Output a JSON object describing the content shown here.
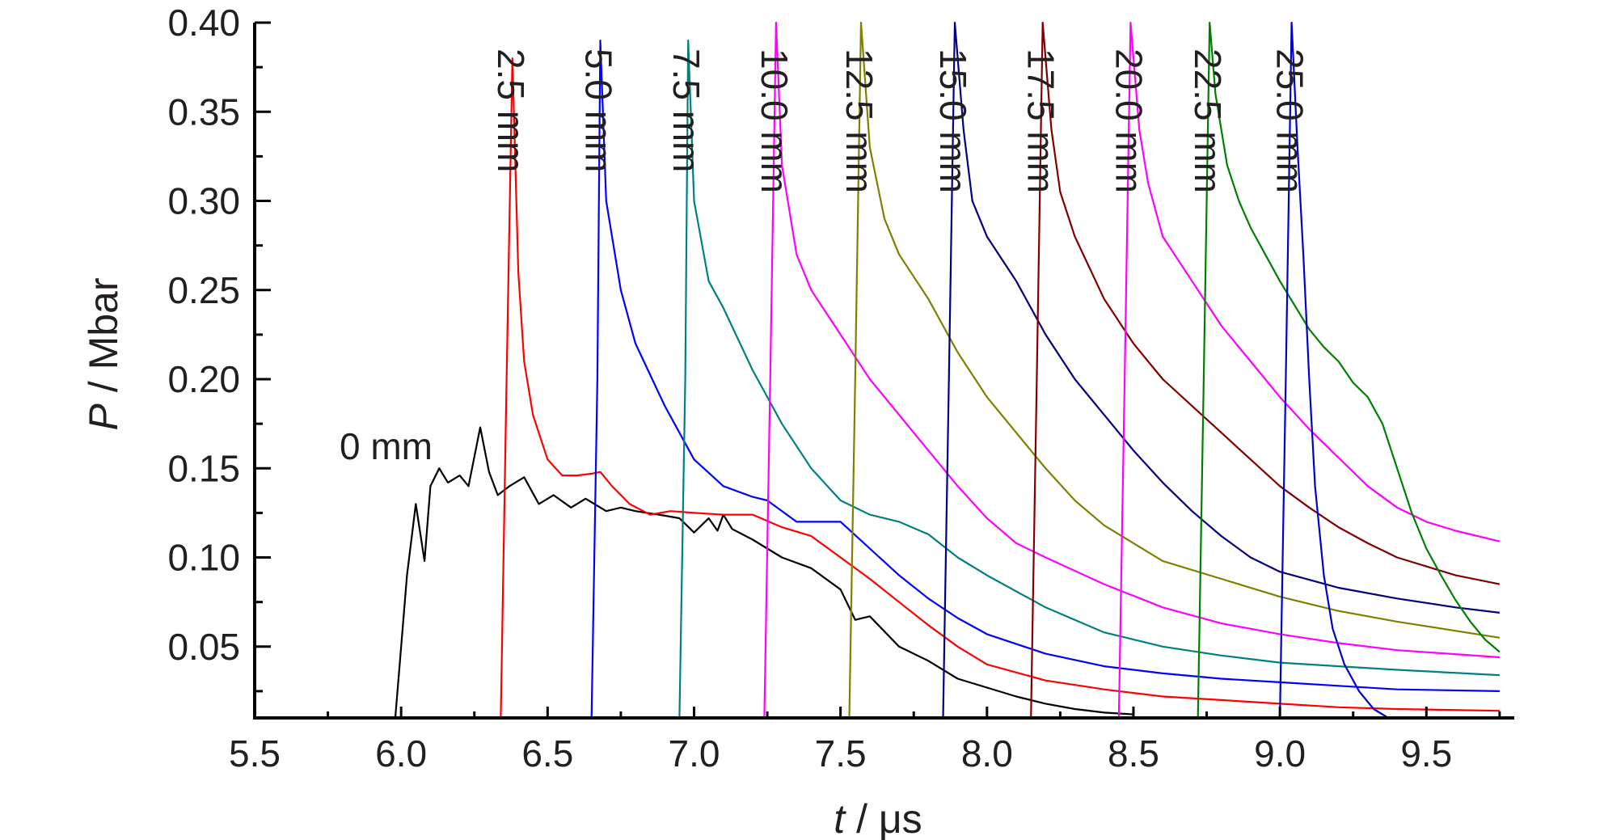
{
  "chart_data": {
    "type": "line",
    "xlabel_var": "t",
    "xlabel_unit": " / μs",
    "ylabel_var": "P",
    "ylabel_unit": " / Mbar",
    "xlim": [
      5.5,
      9.8
    ],
    "ylim": [
      0.01,
      0.4
    ],
    "grid": false,
    "x_ticks": [
      5.5,
      6.0,
      6.5,
      7.0,
      7.5,
      8.0,
      8.5,
      9.0,
      9.5
    ],
    "x_tick_labels": [
      "5.5",
      "6.0",
      "6.5",
      "7.0",
      "7.5",
      "8.0",
      "8.5",
      "9.0",
      "9.5"
    ],
    "y_ticks": [
      0.05,
      0.1,
      0.15,
      0.2,
      0.25,
      0.3,
      0.35,
      0.4
    ],
    "y_tick_labels": [
      "0.05",
      "0.10",
      "0.15",
      "0.20",
      "0.25",
      "0.30",
      "0.35",
      "0.40"
    ],
    "series": [
      {
        "name": "0 mm",
        "color": "#000000",
        "x": [
          5.98,
          6.0,
          6.02,
          6.05,
          6.08,
          6.1,
          6.13,
          6.16,
          6.2,
          6.23,
          6.27,
          6.3,
          6.33,
          6.37,
          6.42,
          6.47,
          6.52,
          6.58,
          6.63,
          6.7,
          6.75,
          6.8,
          6.88,
          6.95,
          7.0,
          7.05,
          7.08,
          7.1,
          7.13,
          7.2,
          7.3,
          7.4,
          7.5,
          7.55,
          7.6,
          7.7,
          7.8,
          7.9,
          8.0,
          8.1,
          8.2,
          8.3,
          8.4,
          8.5
        ],
        "y": [
          0.01,
          0.05,
          0.09,
          0.13,
          0.098,
          0.14,
          0.15,
          0.142,
          0.146,
          0.14,
          0.173,
          0.148,
          0.135,
          0.14,
          0.145,
          0.13,
          0.135,
          0.128,
          0.133,
          0.126,
          0.128,
          0.126,
          0.124,
          0.122,
          0.114,
          0.122,
          0.115,
          0.124,
          0.116,
          0.11,
          0.1,
          0.094,
          0.082,
          0.065,
          0.067,
          0.05,
          0.042,
          0.032,
          0.027,
          0.022,
          0.018,
          0.015,
          0.013,
          0.012
        ]
      },
      {
        "name": "2.5 mm",
        "color": "#ff0000",
        "x": [
          6.34,
          6.36,
          6.38,
          6.4,
          6.42,
          6.45,
          6.5,
          6.55,
          6.6,
          6.65,
          6.68,
          6.72,
          6.78,
          6.85,
          6.92,
          7.0,
          7.1,
          7.2,
          7.3,
          7.4,
          7.5,
          7.6,
          7.7,
          7.8,
          7.9,
          8.0,
          8.2,
          8.4,
          8.6,
          8.8,
          9.0,
          9.2,
          9.4,
          9.75
        ],
        "y": [
          0.01,
          0.2,
          0.38,
          0.26,
          0.21,
          0.18,
          0.155,
          0.146,
          0.146,
          0.147,
          0.148,
          0.14,
          0.13,
          0.124,
          0.126,
          0.125,
          0.124,
          0.124,
          0.117,
          0.112,
          0.1,
          0.088,
          0.075,
          0.062,
          0.05,
          0.04,
          0.031,
          0.026,
          0.022,
          0.02,
          0.018,
          0.016,
          0.015,
          0.014
        ]
      },
      {
        "name": "5.0 mm",
        "color": "#0000ff",
        "x": [
          6.65,
          6.67,
          6.68,
          6.7,
          6.75,
          6.8,
          6.9,
          7.0,
          7.1,
          7.2,
          7.25,
          7.35,
          7.45,
          7.5,
          7.6,
          7.7,
          7.8,
          7.9,
          8.0,
          8.2,
          8.4,
          8.6,
          8.8,
          9.0,
          9.2,
          9.4,
          9.75
        ],
        "y": [
          0.01,
          0.2,
          0.39,
          0.3,
          0.25,
          0.22,
          0.185,
          0.155,
          0.14,
          0.134,
          0.132,
          0.12,
          0.12,
          0.12,
          0.105,
          0.09,
          0.077,
          0.066,
          0.057,
          0.046,
          0.039,
          0.035,
          0.032,
          0.03,
          0.028,
          0.026,
          0.025
        ]
      },
      {
        "name": "7.5 mm",
        "color": "#008080",
        "x": [
          6.95,
          6.97,
          6.98,
          7.0,
          7.05,
          7.1,
          7.2,
          7.3,
          7.4,
          7.5,
          7.6,
          7.7,
          7.8,
          7.9,
          8.0,
          8.2,
          8.4,
          8.6,
          8.8,
          9.0,
          9.2,
          9.4,
          9.75
        ],
        "y": [
          0.01,
          0.2,
          0.39,
          0.3,
          0.255,
          0.24,
          0.205,
          0.175,
          0.15,
          0.132,
          0.124,
          0.12,
          0.113,
          0.1,
          0.09,
          0.072,
          0.058,
          0.05,
          0.045,
          0.041,
          0.039,
          0.037,
          0.034
        ]
      },
      {
        "name": "10.0 mm",
        "color": "#ff00ff",
        "x": [
          7.24,
          7.26,
          7.28,
          7.3,
          7.35,
          7.4,
          7.5,
          7.6,
          7.7,
          7.8,
          7.9,
          8.0,
          8.1,
          8.2,
          8.4,
          8.6,
          8.8,
          9.0,
          9.2,
          9.4,
          9.75
        ],
        "y": [
          0.01,
          0.2,
          0.4,
          0.32,
          0.27,
          0.25,
          0.225,
          0.2,
          0.18,
          0.16,
          0.14,
          0.122,
          0.108,
          0.1,
          0.085,
          0.072,
          0.063,
          0.057,
          0.052,
          0.048,
          0.044
        ]
      },
      {
        "name": "12.5 mm",
        "color": "#808000",
        "x": [
          7.53,
          7.55,
          7.57,
          7.6,
          7.65,
          7.7,
          7.8,
          7.9,
          8.0,
          8.1,
          8.2,
          8.3,
          8.4,
          8.5,
          8.6,
          8.8,
          9.0,
          9.2,
          9.4,
          9.75
        ],
        "y": [
          0.01,
          0.2,
          0.4,
          0.33,
          0.29,
          0.27,
          0.245,
          0.215,
          0.19,
          0.17,
          0.15,
          0.132,
          0.118,
          0.108,
          0.098,
          0.088,
          0.078,
          0.07,
          0.064,
          0.055
        ]
      },
      {
        "name": "15.0 mm",
        "color": "#000080",
        "x": [
          7.85,
          7.87,
          7.89,
          7.92,
          7.95,
          8.0,
          8.1,
          8.2,
          8.3,
          8.4,
          8.5,
          8.6,
          8.7,
          8.8,
          8.9,
          9.0,
          9.2,
          9.4,
          9.6,
          9.75
        ],
        "y": [
          0.01,
          0.2,
          0.4,
          0.34,
          0.3,
          0.28,
          0.255,
          0.225,
          0.2,
          0.18,
          0.16,
          0.142,
          0.126,
          0.112,
          0.1,
          0.092,
          0.083,
          0.077,
          0.072,
          0.069
        ]
      },
      {
        "name": "17.5 mm",
        "color": "#800000",
        "x": [
          8.15,
          8.17,
          8.19,
          8.22,
          8.25,
          8.3,
          8.4,
          8.5,
          8.6,
          8.7,
          8.8,
          8.9,
          9.0,
          9.1,
          9.2,
          9.3,
          9.4,
          9.5,
          9.6,
          9.75
        ],
        "y": [
          0.01,
          0.2,
          0.4,
          0.34,
          0.305,
          0.28,
          0.245,
          0.22,
          0.2,
          0.185,
          0.17,
          0.155,
          0.14,
          0.128,
          0.117,
          0.108,
          0.1,
          0.095,
          0.09,
          0.085
        ]
      },
      {
        "name": "20.0 mm",
        "color": "#ff00ff",
        "x": [
          8.45,
          8.47,
          8.49,
          8.52,
          8.55,
          8.6,
          8.7,
          8.8,
          8.9,
          9.0,
          9.1,
          9.2,
          9.3,
          9.4,
          9.5,
          9.6,
          9.75
        ],
        "y": [
          0.01,
          0.2,
          0.4,
          0.34,
          0.31,
          0.28,
          0.255,
          0.23,
          0.21,
          0.19,
          0.172,
          0.156,
          0.14,
          0.128,
          0.12,
          0.115,
          0.109
        ]
      },
      {
        "name": "22.5 mm",
        "color": "#008000",
        "x": [
          8.72,
          8.74,
          8.76,
          8.78,
          8.82,
          8.86,
          8.9,
          8.95,
          9.0,
          9.1,
          9.15,
          9.2,
          9.25,
          9.3,
          9.35,
          9.4,
          9.45,
          9.5,
          9.55,
          9.6,
          9.65,
          9.7,
          9.75
        ],
        "y": [
          0.01,
          0.2,
          0.4,
          0.36,
          0.32,
          0.3,
          0.285,
          0.27,
          0.255,
          0.228,
          0.218,
          0.21,
          0.198,
          0.19,
          0.175,
          0.15,
          0.125,
          0.105,
          0.09,
          0.076,
          0.064,
          0.054,
          0.047
        ]
      },
      {
        "name": "25.0 mm",
        "color": "#0000cd",
        "x": [
          9.0,
          9.02,
          9.04,
          9.06,
          9.08,
          9.1,
          9.12,
          9.15,
          9.18,
          9.22,
          9.27,
          9.32,
          9.37
        ],
        "y": [
          0.01,
          0.2,
          0.4,
          0.33,
          0.27,
          0.2,
          0.14,
          0.09,
          0.06,
          0.04,
          0.025,
          0.015,
          0.01
        ]
      }
    ]
  }
}
